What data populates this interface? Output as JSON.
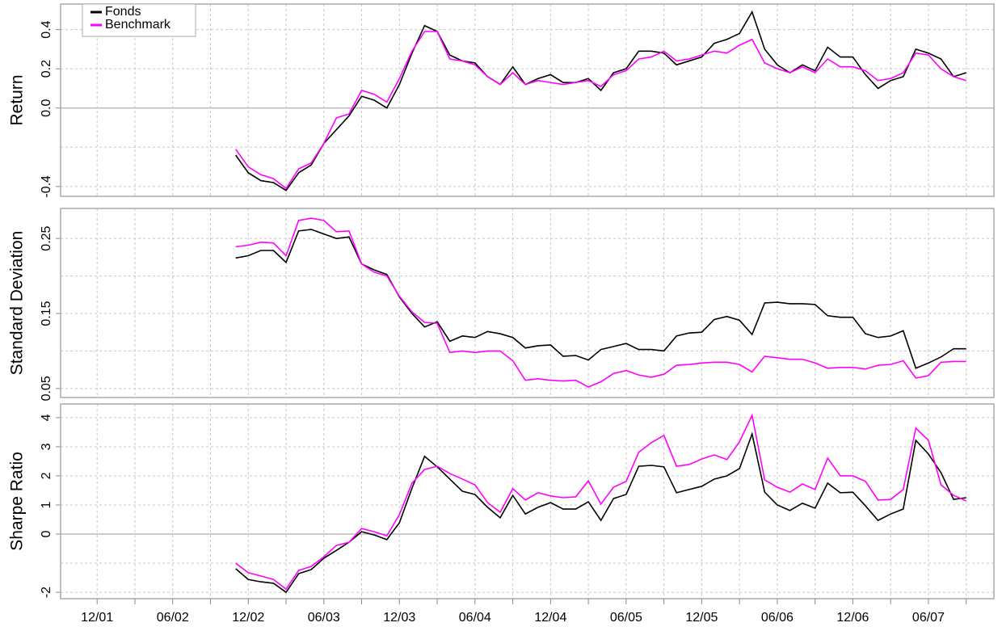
{
  "chart_data": [
    {
      "type": "line",
      "ylabel": "Return",
      "legend": "top-left",
      "grid": true,
      "x": [
        11,
        12,
        13,
        14,
        15,
        16,
        17,
        18,
        19,
        20,
        21,
        22,
        23,
        24,
        25,
        26,
        27,
        28,
        29,
        30,
        31,
        32,
        33,
        34,
        35,
        36,
        37,
        38,
        39,
        40,
        41,
        42,
        43,
        44,
        45,
        46,
        47,
        48,
        49,
        50,
        51,
        52,
        53,
        54,
        55,
        56,
        57,
        58,
        59,
        60,
        61,
        62,
        63,
        64,
        65,
        66,
        67,
        68,
        69
      ],
      "xlim": [
        -2.9,
        71.2
      ],
      "ylim": [
        -0.45,
        0.53
      ],
      "yticks": [
        -0.4,
        {
          "value": 0,
          "label": "0.0"
        },
        0.2,
        0.4
      ],
      "yminor": [
        -0.2
      ],
      "series": [
        {
          "name": "Fonds",
          "color": "#000000",
          "values": [
            -0.24,
            -0.33,
            -0.37,
            -0.38,
            -0.42,
            -0.33,
            -0.29,
            -0.18,
            -0.11,
            -0.04,
            0.06,
            0.04,
            0.0,
            0.12,
            0.28,
            0.42,
            0.39,
            0.27,
            0.24,
            0.23,
            0.16,
            0.12,
            0.21,
            0.12,
            0.15,
            0.17,
            0.13,
            0.13,
            0.15,
            0.09,
            0.18,
            0.2,
            0.29,
            0.29,
            0.28,
            0.22,
            0.24,
            0.26,
            0.33,
            0.35,
            0.38,
            0.49,
            0.3,
            0.22,
            0.18,
            0.22,
            0.19,
            0.31,
            0.26,
            0.26,
            0.17,
            0.1,
            0.14,
            0.16,
            0.3,
            0.28,
            0.25,
            0.16,
            0.18
          ]
        },
        {
          "name": "Benchmark",
          "color": "#ff00ff",
          "values": [
            -0.21,
            -0.3,
            -0.34,
            -0.36,
            -0.41,
            -0.31,
            -0.28,
            -0.18,
            -0.05,
            -0.03,
            0.09,
            0.07,
            0.03,
            0.15,
            0.29,
            0.39,
            0.39,
            0.25,
            0.24,
            0.22,
            0.16,
            0.12,
            0.18,
            0.12,
            0.14,
            0.13,
            0.12,
            0.13,
            0.14,
            0.11,
            0.17,
            0.19,
            0.25,
            0.26,
            0.29,
            0.24,
            0.25,
            0.27,
            0.29,
            0.28,
            0.32,
            0.35,
            0.23,
            0.2,
            0.18,
            0.21,
            0.18,
            0.25,
            0.21,
            0.21,
            0.19,
            0.14,
            0.15,
            0.18,
            0.28,
            0.27,
            0.2,
            0.16,
            0.14
          ]
        }
      ]
    },
    {
      "type": "line",
      "ylabel": "Standard Deviation",
      "grid": true,
      "x": [
        11,
        12,
        13,
        14,
        15,
        16,
        17,
        18,
        19,
        20,
        21,
        22,
        23,
        24,
        25,
        26,
        27,
        28,
        29,
        30,
        31,
        32,
        33,
        34,
        35,
        36,
        37,
        38,
        39,
        40,
        41,
        42,
        43,
        44,
        45,
        46,
        47,
        48,
        49,
        50,
        51,
        52,
        53,
        54,
        55,
        56,
        57,
        58,
        59,
        60,
        61,
        62,
        63,
        64,
        65,
        66,
        67,
        68,
        69
      ],
      "xlim": [
        -2.9,
        71.2
      ],
      "ylim": [
        0.038,
        0.29
      ],
      "yticks": [
        0.05,
        0.15,
        0.25
      ],
      "yminor": [
        0.1,
        0.2
      ],
      "series": [
        {
          "color": "#000000",
          "values": [
            0.224,
            0.227,
            0.234,
            0.234,
            0.218,
            0.26,
            0.262,
            0.256,
            0.25,
            0.252,
            0.216,
            0.208,
            0.202,
            0.172,
            0.15,
            0.132,
            0.139,
            0.113,
            0.12,
            0.118,
            0.126,
            0.123,
            0.118,
            0.104,
            0.107,
            0.108,
            0.093,
            0.094,
            0.088,
            0.102,
            0.106,
            0.11,
            0.102,
            0.102,
            0.1,
            0.12,
            0.124,
            0.125,
            0.142,
            0.146,
            0.141,
            0.122,
            0.164,
            0.165,
            0.163,
            0.163,
            0.162,
            0.147,
            0.145,
            0.145,
            0.123,
            0.118,
            0.12,
            0.127,
            0.077,
            0.084,
            0.092,
            0.103,
            0.103
          ]
        },
        {
          "color": "#ff00ff",
          "values": [
            0.239,
            0.241,
            0.245,
            0.244,
            0.227,
            0.274,
            0.277,
            0.274,
            0.259,
            0.26,
            0.216,
            0.205,
            0.2,
            0.173,
            0.152,
            0.138,
            0.137,
            0.098,
            0.1,
            0.098,
            0.1,
            0.1,
            0.087,
            0.061,
            0.063,
            0.061,
            0.06,
            0.061,
            0.052,
            0.059,
            0.07,
            0.074,
            0.068,
            0.065,
            0.069,
            0.081,
            0.082,
            0.084,
            0.085,
            0.085,
            0.082,
            0.072,
            0.093,
            0.091,
            0.089,
            0.089,
            0.084,
            0.077,
            0.078,
            0.078,
            0.076,
            0.081,
            0.082,
            0.087,
            0.064,
            0.067,
            0.085,
            0.086,
            0.086
          ]
        }
      ]
    },
    {
      "type": "line",
      "ylabel": "Sharpe Ratio",
      "grid": true,
      "x": [
        11,
        12,
        13,
        14,
        15,
        16,
        17,
        18,
        19,
        20,
        21,
        22,
        23,
        24,
        25,
        26,
        27,
        28,
        29,
        30,
        31,
        32,
        33,
        34,
        35,
        36,
        37,
        38,
        39,
        40,
        41,
        42,
        43,
        44,
        45,
        46,
        47,
        48,
        49,
        50,
        51,
        52,
        53,
        54,
        55,
        56,
        57,
        58,
        59,
        60,
        61,
        62,
        63,
        64,
        65,
        66,
        67,
        68,
        69
      ],
      "xlim": [
        -2.9,
        71.2
      ],
      "ylim": [
        -2.22,
        4.47
      ],
      "yticks": [
        -2,
        0,
        1,
        2,
        3,
        4
      ],
      "yminor": [
        -1
      ],
      "xticks": [
        {
          "value": 0,
          "label": "12/01"
        },
        {
          "value": 6,
          "label": "06/02"
        },
        {
          "value": 12,
          "label": "12/02"
        },
        {
          "value": 18,
          "label": "06/03"
        },
        {
          "value": 24,
          "label": "12/03"
        },
        {
          "value": 30,
          "label": "06/04"
        },
        {
          "value": 36,
          "label": "12/04"
        },
        {
          "value": 42,
          "label": "06/05"
        },
        {
          "value": 48,
          "label": "12/05"
        },
        {
          "value": 54,
          "label": "06/06"
        },
        {
          "value": 60,
          "label": "12/06"
        },
        {
          "value": 66,
          "label": "06/07"
        }
      ],
      "xminor": [
        3,
        9,
        15,
        21,
        27,
        33,
        39,
        45,
        51,
        57,
        63,
        69
      ],
      "series": [
        {
          "color": "#000000",
          "values": [
            -1.19,
            -1.56,
            -1.64,
            -1.69,
            -2.0,
            -1.36,
            -1.22,
            -0.83,
            -0.56,
            -0.28,
            0.08,
            -0.03,
            -0.19,
            0.39,
            1.58,
            2.67,
            2.31,
            1.89,
            1.47,
            1.36,
            0.92,
            0.56,
            1.33,
            0.69,
            0.92,
            1.08,
            0.86,
            0.86,
            1.11,
            0.47,
            1.22,
            1.36,
            2.33,
            2.36,
            2.31,
            1.42,
            1.53,
            1.64,
            1.89,
            2.0,
            2.25,
            3.44,
            1.44,
            1.0,
            0.81,
            1.06,
            0.89,
            1.75,
            1.42,
            1.44,
            0.97,
            0.47,
            0.69,
            0.86,
            3.22,
            2.75,
            2.11,
            1.19,
            1.25
          ]
        },
        {
          "color": "#ff00ff",
          "values": [
            -1.0,
            -1.33,
            -1.44,
            -1.56,
            -1.89,
            -1.25,
            -1.11,
            -0.78,
            -0.39,
            -0.28,
            0.19,
            0.08,
            -0.06,
            0.67,
            1.75,
            2.22,
            2.33,
            2.08,
            1.89,
            1.69,
            1.08,
            0.75,
            1.56,
            1.17,
            1.42,
            1.31,
            1.25,
            1.28,
            1.83,
            1.03,
            1.61,
            1.81,
            2.81,
            3.14,
            3.39,
            2.33,
            2.39,
            2.58,
            2.72,
            2.56,
            3.17,
            4.08,
            1.86,
            1.61,
            1.44,
            1.72,
            1.53,
            2.61,
            2.0,
            2.0,
            1.81,
            1.17,
            1.19,
            1.53,
            3.64,
            3.22,
            1.69,
            1.33,
            1.14
          ]
        }
      ]
    }
  ]
}
